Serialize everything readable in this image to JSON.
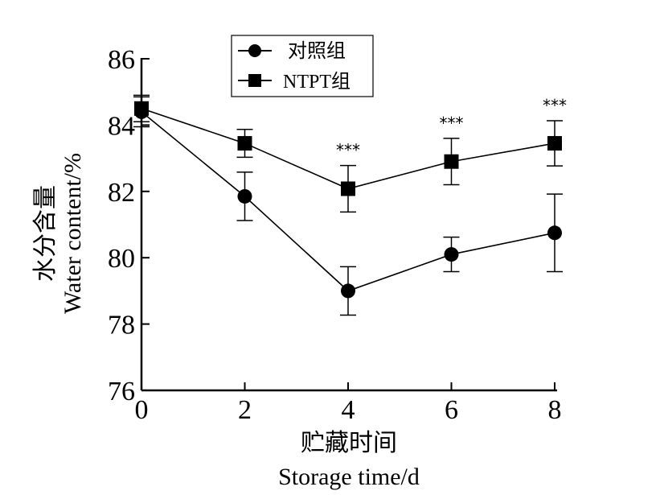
{
  "chart_data": {
    "type": "line",
    "xlabel_cn": "贮藏时间",
    "xlabel_en": "Storage  time/d",
    "ylabel_cn": "水分含量",
    "ylabel_en": "Water  content/%",
    "xlim": [
      0,
      8
    ],
    "ylim": [
      76,
      86
    ],
    "xticks": [
      0,
      2,
      4,
      6,
      8
    ],
    "yticks": [
      76,
      78,
      80,
      82,
      84,
      86
    ],
    "x": [
      0,
      2,
      4,
      6,
      8
    ],
    "grid": false,
    "legend_position": "top",
    "series": [
      {
        "name": "对照组",
        "marker": "circle",
        "values": [
          84.4,
          81.85,
          79.0,
          80.1,
          80.75
        ],
        "errors": [
          0.45,
          0.73,
          0.73,
          0.52,
          1.17
        ]
      },
      {
        "name": "NTPT组",
        "marker": "square",
        "values": [
          84.5,
          83.45,
          82.08,
          82.9,
          83.45
        ],
        "errors": [
          0.4,
          0.42,
          0.7,
          0.7,
          0.68
        ]
      }
    ],
    "annotations": [
      {
        "x": 4,
        "text": "***"
      },
      {
        "x": 6,
        "text": "***"
      },
      {
        "x": 8,
        "text": "***"
      }
    ]
  }
}
